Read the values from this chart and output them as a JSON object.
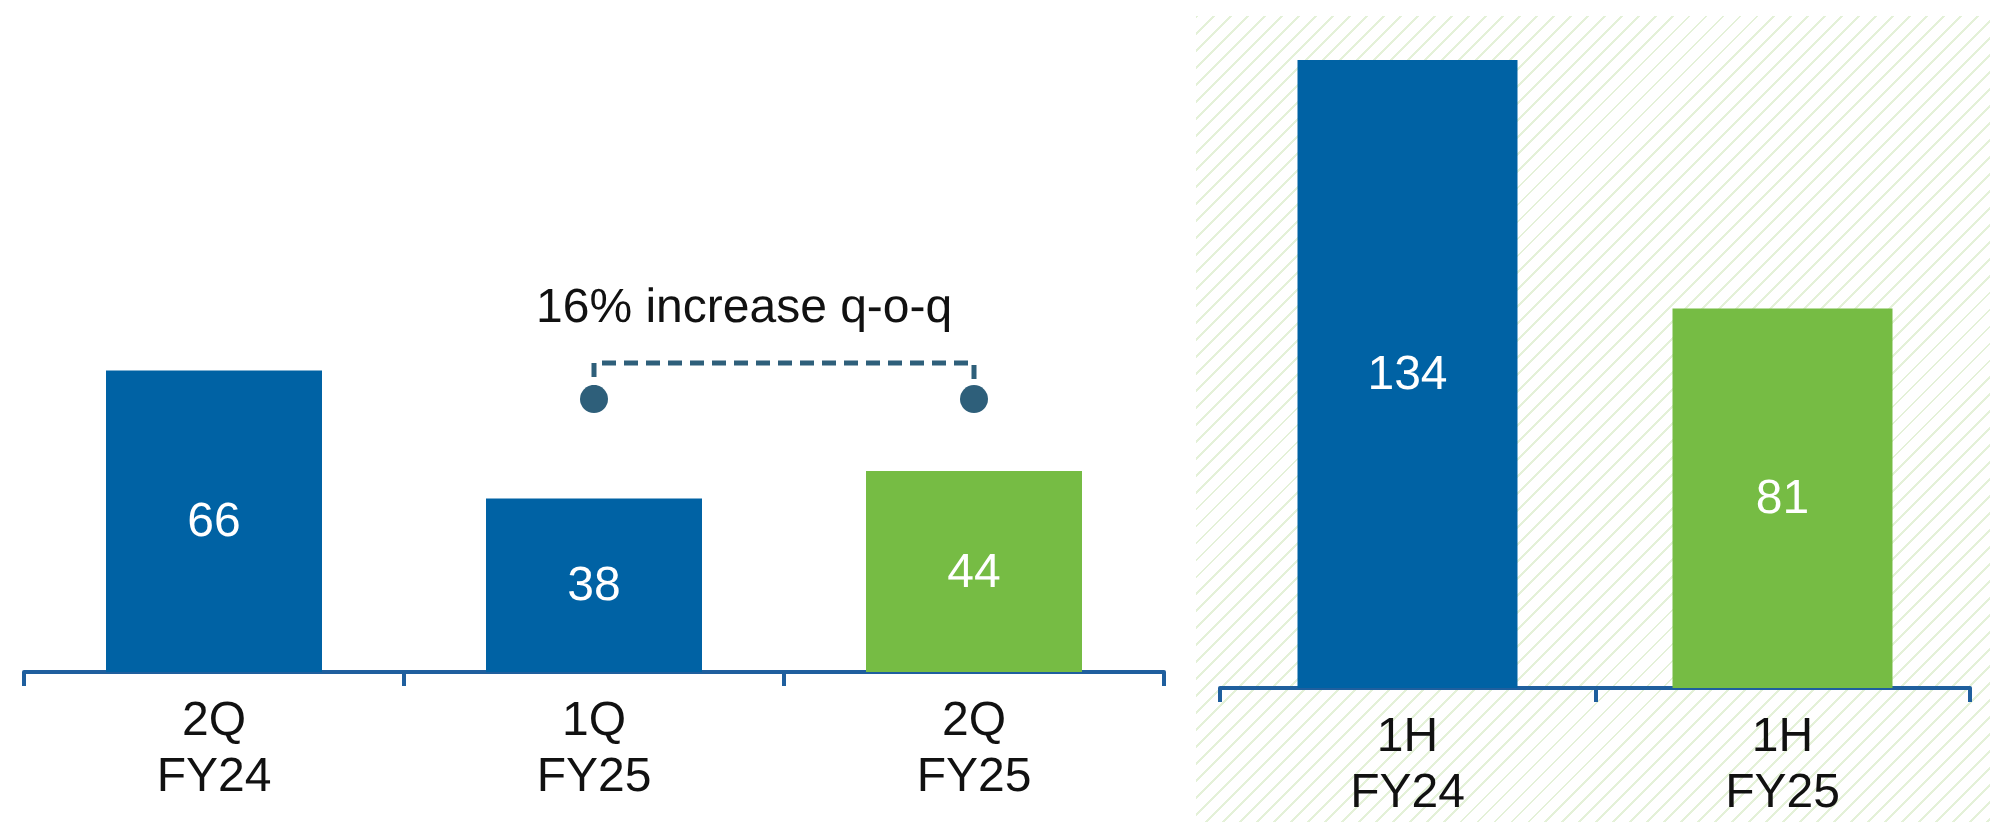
{
  "chart_data": [
    {
      "type": "bar",
      "categories": [
        "2Q\nFY24",
        "1Q\nFY25",
        "2Q\nFY25"
      ],
      "values": [
        66,
        38,
        44
      ],
      "colors": [
        "#0062a4",
        "#0062a4",
        "#76bc44"
      ],
      "data_labels": true,
      "annotations": [
        "16% increase q-o-q"
      ]
    },
    {
      "type": "bar",
      "categories": [
        "1H\nFY24",
        "1H\nFY25"
      ],
      "values": [
        134,
        81
      ],
      "colors": [
        "#0062a4",
        "#76bc44"
      ],
      "data_labels": true
    }
  ]
}
